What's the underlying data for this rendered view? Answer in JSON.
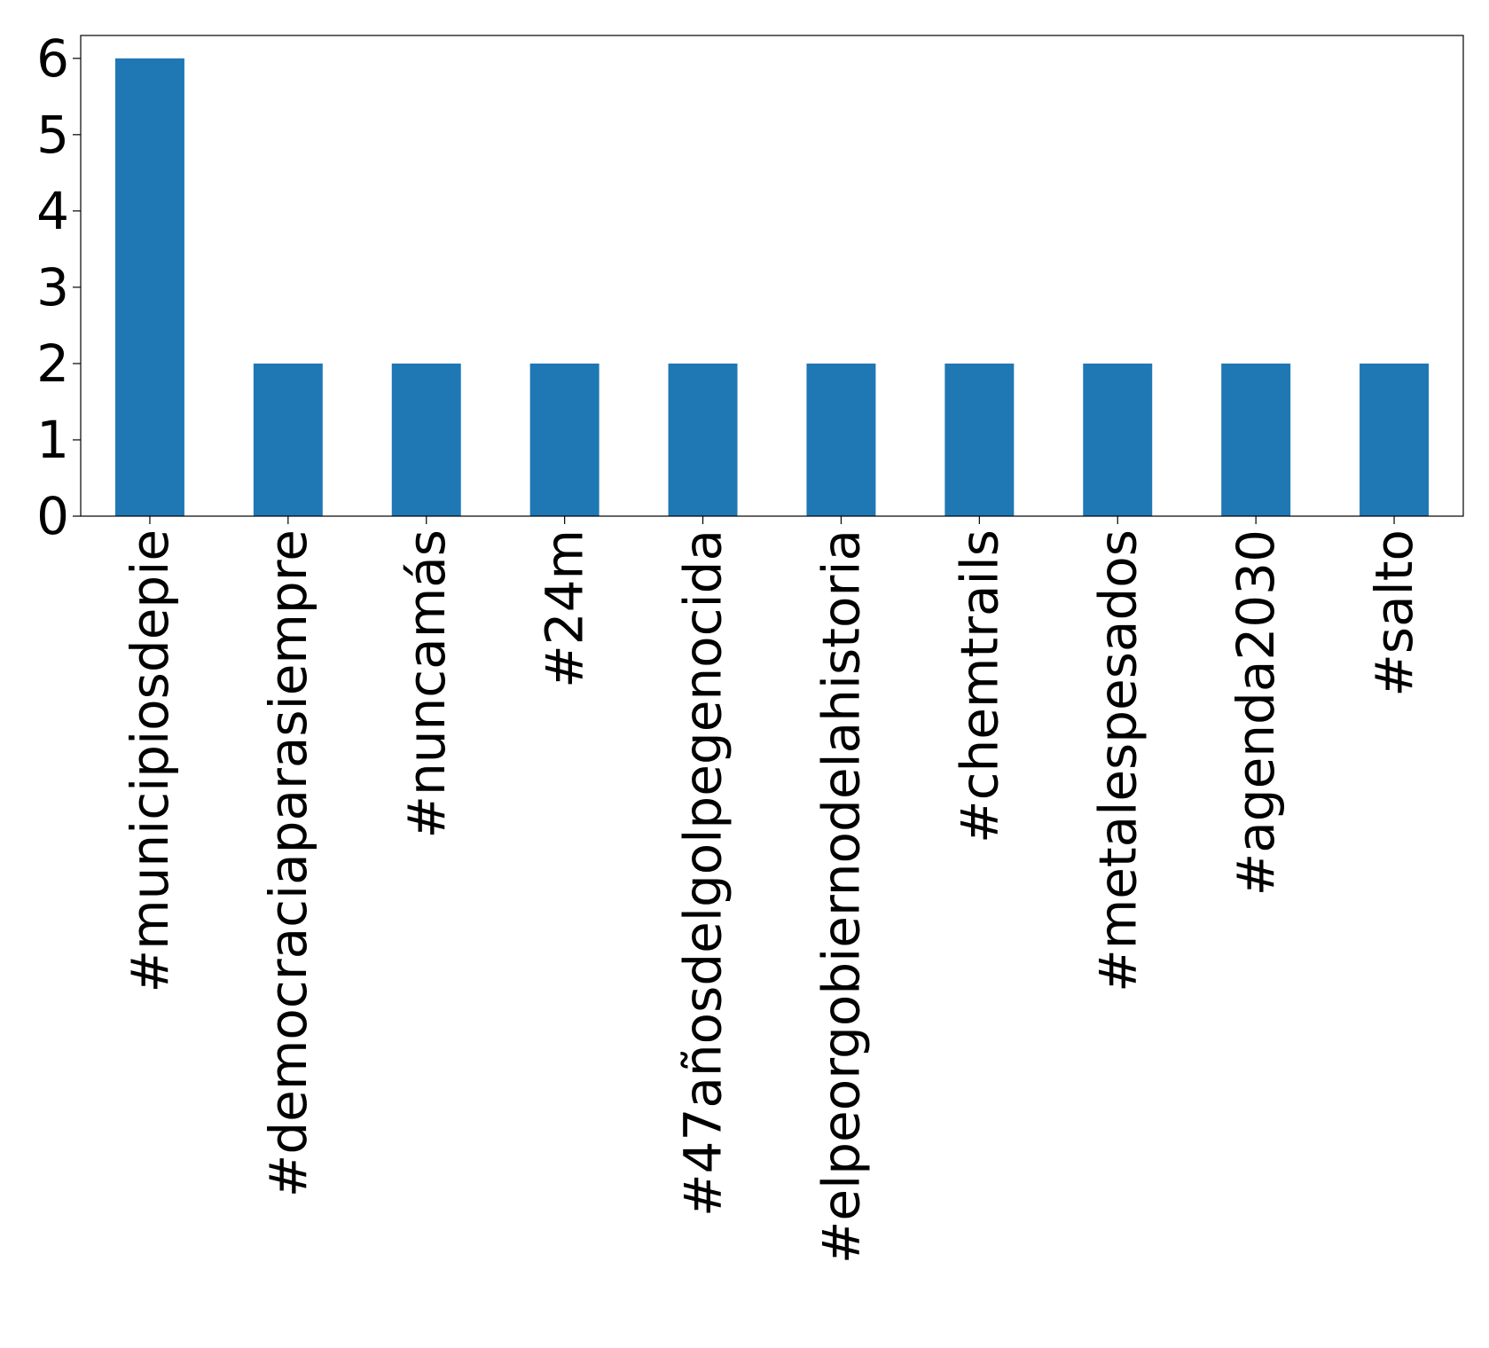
{
  "chart_data": {
    "type": "bar",
    "title": "",
    "xlabel": "",
    "ylabel": "",
    "categories": [
      "#municipiosdepie",
      "#democraciaparasiempre",
      "#nuncamás",
      "#24m",
      "#47añosdelgolpegenocida",
      "#elpeorgobiernodelahistoria",
      "#chemtrails",
      "#metalespesados",
      "#agenda2030",
      "#salto"
    ],
    "values": [
      6,
      2,
      2,
      2,
      2,
      2,
      2,
      2,
      2,
      2
    ],
    "ylim": [
      0,
      6.3
    ],
    "yticks": [
      0,
      1,
      2,
      3,
      4,
      5,
      6
    ],
    "bar_color": "#1f77b4",
    "grid": false,
    "legend": "none"
  }
}
